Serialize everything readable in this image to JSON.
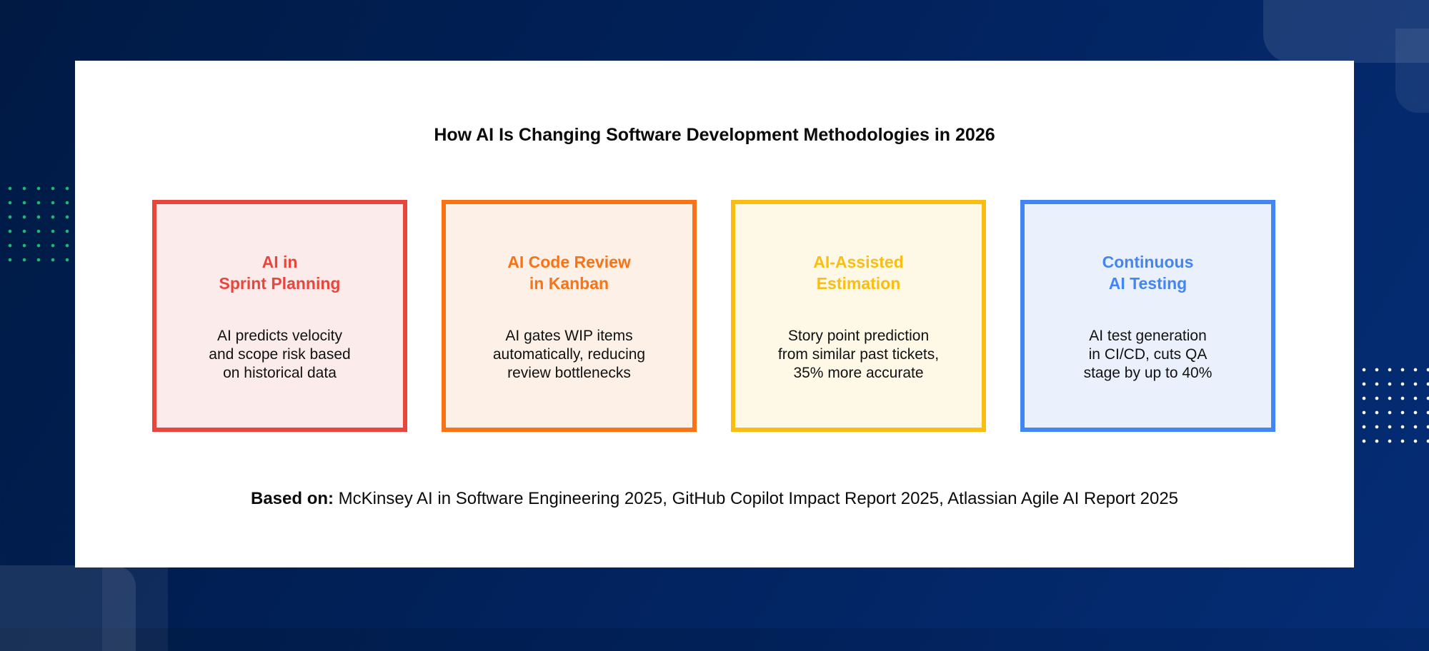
{
  "title": "How AI Is Changing Software Development Methodologies in 2026",
  "cards": [
    {
      "title": "AI in\nSprint Planning",
      "body": "AI predicts velocity\nand scope risk based\non historical data",
      "border_color": "#e8463c",
      "fill_color": "#fbeceb",
      "title_color": "#e8463c"
    },
    {
      "title": "AI Code Review\nin Kanban",
      "body": "AI gates WIP items\nautomatically, reducing\nreview bottlenecks",
      "border_color": "#f97316",
      "fill_color": "#fdf0e6",
      "title_color": "#f97316"
    },
    {
      "title": "AI-Assisted\nEstimation",
      "body": "Story point prediction\nfrom similar past tickets,\n35% more accurate",
      "border_color": "#f9bd13",
      "fill_color": "#fef9e6",
      "title_color": "#f9bd13"
    },
    {
      "title": "Continuous\nAI Testing",
      "body": "AI test generation\nin CI/CD, cuts QA\nstage by up to 40%",
      "border_color": "#4285f4",
      "fill_color": "#eaf1fd",
      "title_color": "#4285f4"
    }
  ],
  "source": {
    "label": "Based on:",
    "text": " McKinsey AI in Software Engineering 2025, GitHub Copilot Impact Report 2025, Atlassian Agile AI Report 2025"
  }
}
